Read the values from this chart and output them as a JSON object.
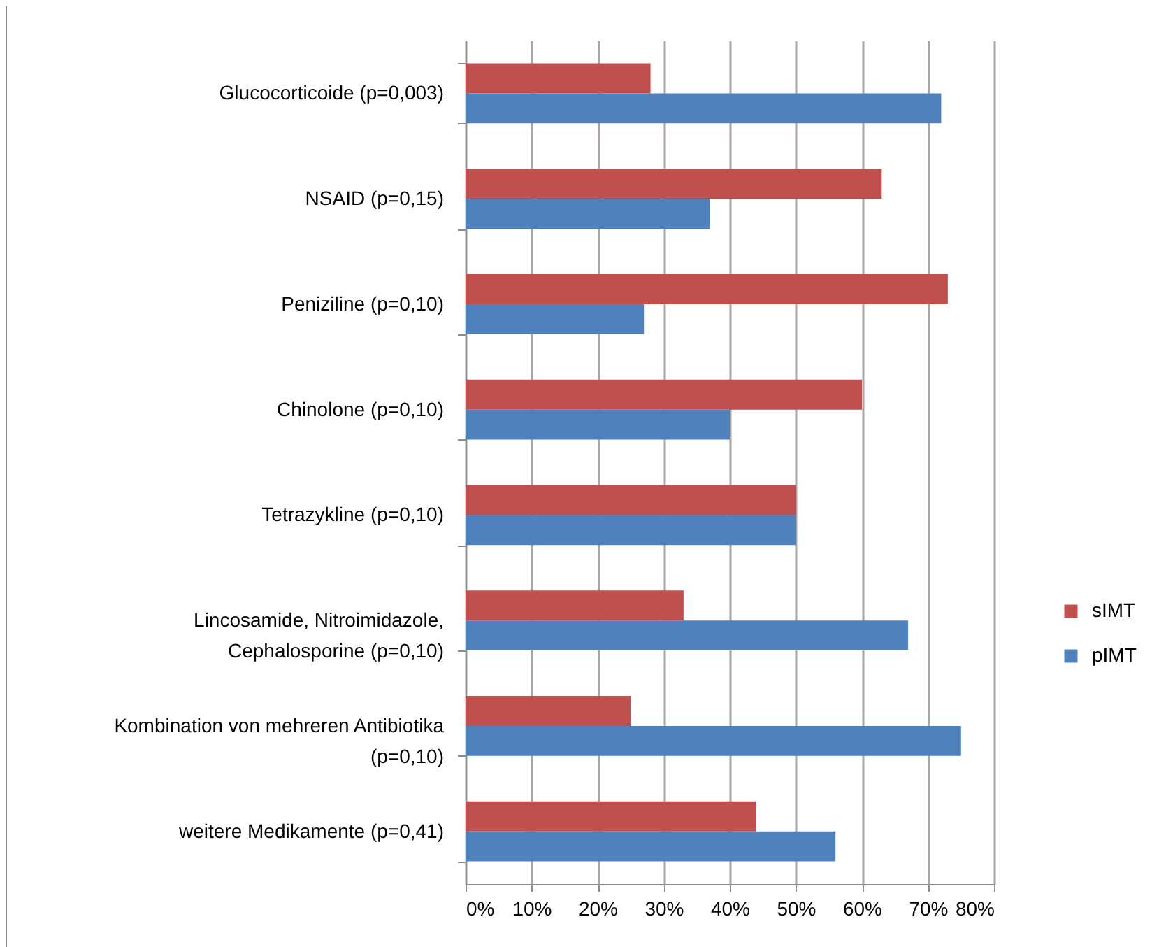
{
  "chart_data": {
    "type": "bar",
    "orientation": "horizontal",
    "categories": [
      "Glucocorticoide (p=0,003)",
      "NSAID (p=0,15)",
      "Peniziline (p=0,10)",
      "Chinolone (p=0,10)",
      "Tetrazykline (p=0,10)",
      "Lincosamide, Nitroimidazole, Cephalosporine (p=0,10)",
      "Kombination von mehreren Antibiotika (p=0,10)",
      "weitere Medikamente (p=0,41)"
    ],
    "series": [
      {
        "name": "sIMT",
        "color": "#c0504d",
        "values": [
          28,
          63,
          73,
          60,
          50,
          33,
          25,
          44
        ]
      },
      {
        "name": "pIMT",
        "color": "#4f81bd",
        "values": [
          72,
          37,
          27,
          40,
          50,
          67,
          75,
          56
        ]
      }
    ],
    "xlim": [
      0,
      80
    ],
    "xticks": [
      {
        "value": 0,
        "label": "0%"
      },
      {
        "value": 10,
        "label": "10%"
      },
      {
        "value": 20,
        "label": "20%"
      },
      {
        "value": 30,
        "label": "30%"
      },
      {
        "value": 40,
        "label": "40%"
      },
      {
        "value": 50,
        "label": "50%"
      },
      {
        "value": 60,
        "label": "60%"
      },
      {
        "value": 70,
        "label": "70%"
      },
      {
        "value": 80,
        "label": "80%"
      }
    ],
    "grid": "x",
    "legend": "right"
  }
}
